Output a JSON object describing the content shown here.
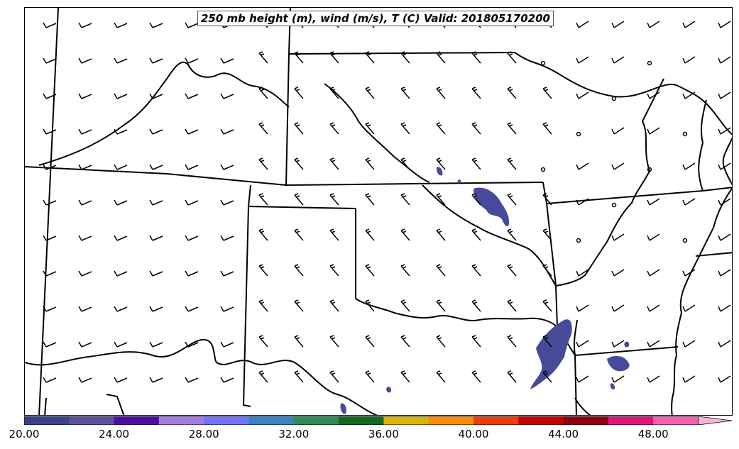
{
  "title": "250 mb height (m), wind (m/s), T (C) Valid: 201805170200",
  "colorbar": {
    "ticks": [
      "20.00",
      "24.00",
      "28.00",
      "32.00",
      "36.00",
      "40.00",
      "44.00",
      "48.00"
    ],
    "min": 20,
    "max": 51.5,
    "step": 2,
    "extend": "max",
    "colors": [
      "#3b3f8f",
      "#5a4fa3",
      "#4b0fa8",
      "#a77be6",
      "#6f73ff",
      "#3a83c9",
      "#2e8b57",
      "#0f6b1e",
      "#d8b400",
      "#ff8a00",
      "#ef3a0a",
      "#c90000",
      "#8f0010",
      "#e0157a",
      "#f55fb0",
      "#fdb4d8"
    ]
  },
  "shaded_field_color": "#474a9a",
  "line_color": "#000000"
}
